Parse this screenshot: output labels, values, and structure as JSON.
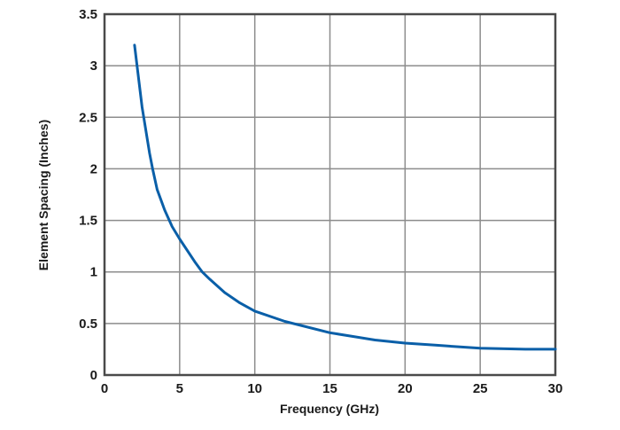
{
  "chart_data": {
    "type": "line",
    "title": "",
    "xlabel": "Frequency (GHz)",
    "ylabel": "Element Spacing (Inches)",
    "xlim": [
      0,
      30
    ],
    "ylim": [
      0,
      3.5
    ],
    "xticks": [
      "0",
      "5",
      "10",
      "15",
      "20",
      "25",
      "30"
    ],
    "yticks": [
      "0",
      "0.5",
      "1",
      "1.5",
      "2",
      "2.5",
      "3",
      "3.5"
    ],
    "grid": true,
    "legend": null,
    "series": [
      {
        "name": "Element Spacing",
        "color": "#0a5fa8",
        "x": [
          2,
          2.5,
          3,
          3.2,
          3.5,
          4,
          4.5,
          5,
          6,
          6.5,
          7,
          8,
          9,
          10,
          12,
          15,
          18,
          20,
          22,
          25,
          28,
          30
        ],
        "y": [
          3.2,
          2.6,
          2.15,
          2.0,
          1.8,
          1.6,
          1.44,
          1.32,
          1.1,
          1.0,
          0.93,
          0.8,
          0.7,
          0.62,
          0.52,
          0.41,
          0.34,
          0.31,
          0.29,
          0.26,
          0.25,
          0.25
        ]
      }
    ]
  }
}
